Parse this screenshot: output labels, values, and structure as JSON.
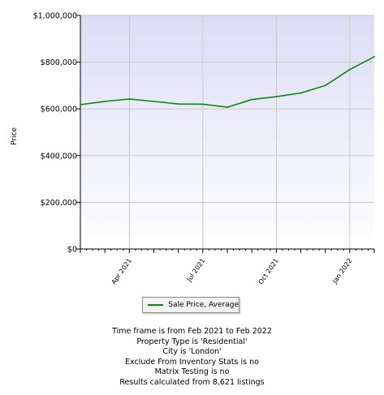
{
  "chart_data": {
    "type": "line",
    "ylabel": "Price",
    "ylim": [
      0,
      1000000
    ],
    "yticks": [
      0,
      200000,
      400000,
      600000,
      800000,
      1000000
    ],
    "ytick_labels": [
      "$0",
      "$200,000",
      "$400,000",
      "$600,000",
      "$800,000",
      "$1,000,000"
    ],
    "x": [
      "2021-02",
      "2021-03",
      "2021-04",
      "2021-05",
      "2021-06",
      "2021-07",
      "2021-08",
      "2021-09",
      "2021-10",
      "2021-11",
      "2021-12",
      "2022-01",
      "2022-02"
    ],
    "xtick_labels": [
      {
        "x": "2021-04",
        "label": "Apr 2021"
      },
      {
        "x": "2021-07",
        "label": "Jul 2021"
      },
      {
        "x": "2021-10",
        "label": "Oct 2021"
      },
      {
        "x": "2022-01",
        "label": "Jan 2022"
      }
    ],
    "series": [
      {
        "name": "Sale Price, Average",
        "color": "#0a8a0a",
        "values": [
          618000,
          632000,
          642000,
          632000,
          621000,
          620000,
          607000,
          640000,
          652000,
          668000,
          700000,
          768000,
          823000
        ]
      }
    ],
    "grid": true,
    "plot_background": [
      "#dcdcf6",
      "#ffffff"
    ],
    "legend_position": "bottom"
  },
  "legend": {
    "label": "Sale Price, Average"
  },
  "footer": {
    "lines": [
      "Time frame is from Feb 2021 to Feb 2022",
      "Property Type is 'Residential'",
      "City is 'London'",
      "Exclude From Inventory Stats is no",
      "Matrix Testing is no",
      "Results calculated from 8,621 listings"
    ]
  }
}
